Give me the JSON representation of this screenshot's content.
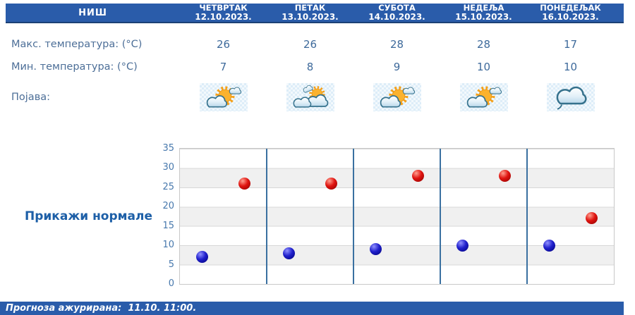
{
  "header": {
    "location": "НИШ",
    "days": [
      {
        "name": "ЧЕТВРТАК",
        "date": "12.10.2023."
      },
      {
        "name": "ПЕТАК",
        "date": "13.10.2023."
      },
      {
        "name": "СУБОТА",
        "date": "14.10.2023."
      },
      {
        "name": "НЕДЕЉА",
        "date": "15.10.2023."
      },
      {
        "name": "ПОНЕДЕЉАК",
        "date": "16.10.2023."
      }
    ]
  },
  "rows": {
    "max_temp": {
      "label": "Макс. температура: (°C)",
      "values": [
        26,
        26,
        28,
        28,
        17
      ]
    },
    "min_temp": {
      "label": "Мин. температура: (°C)",
      "values": [
        7,
        8,
        9,
        10,
        10
      ]
    },
    "phenomenon": {
      "label": "Појава:",
      "icons": [
        "sun-clouds",
        "clouds-sun",
        "sun-clouds",
        "sun-clouds",
        "cloud-drizzle"
      ]
    }
  },
  "normals_button_label": "Прикажи нормале",
  "chart_data": {
    "type": "scatter",
    "categories": [
      "12.10.2023.",
      "13.10.2023.",
      "14.10.2023.",
      "15.10.2023.",
      "16.10.2023."
    ],
    "series": [
      {
        "name": "Макс. температура",
        "color": "#d81414",
        "values": [
          26,
          26,
          28,
          28,
          17
        ]
      },
      {
        "name": "Мин. температура",
        "color": "#1f1fbe",
        "values": [
          7,
          8,
          9,
          10,
          10
        ]
      }
    ],
    "ylim": [
      0,
      35
    ],
    "yticks": [
      0,
      5,
      10,
      15,
      20,
      25,
      30,
      35
    ],
    "grid": "horizontal-bands-and-day-separators",
    "legend": "none"
  },
  "footer": {
    "updated_text": "Прогноза ажурирана:  11.10. 11:00."
  }
}
